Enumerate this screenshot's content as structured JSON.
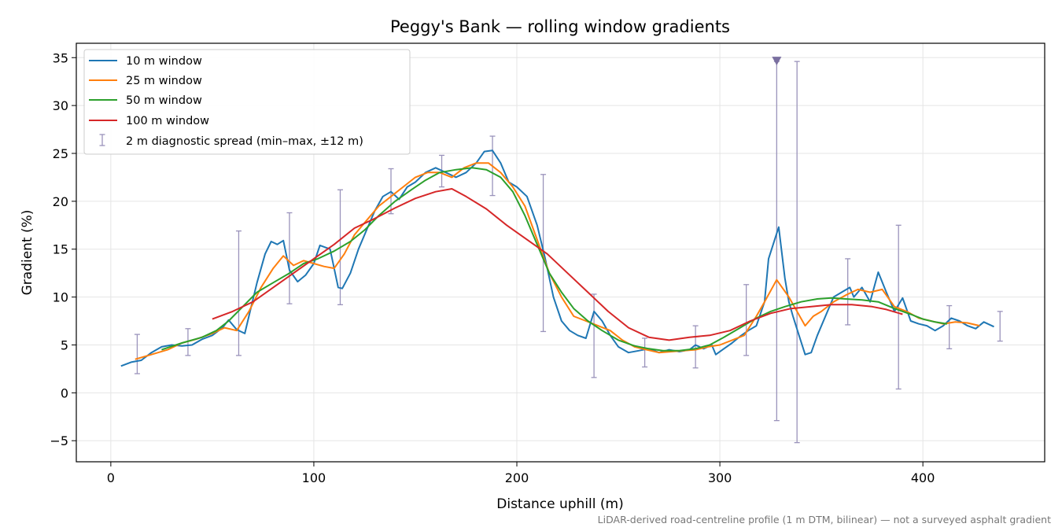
{
  "chart_data": {
    "type": "line",
    "title": "Peggy's Bank — rolling window gradients",
    "xlabel": "Distance uphill (m)",
    "ylabel": "Gradient (%)",
    "xlim": [
      -17,
      460
    ],
    "ylim": [
      -7.2,
      36.5
    ],
    "xticks": [
      0,
      100,
      200,
      300,
      400
    ],
    "yticks": [
      -5,
      0,
      5,
      10,
      15,
      20,
      25,
      30,
      35
    ],
    "grid": true,
    "legend_position": "top-left",
    "footnote": "LiDAR-derived road-centreline profile (1 m DTM, bilinear) — not a surveyed asphalt gradient",
    "series": [
      {
        "name": "10 m window",
        "color": "#1f77b4",
        "points": [
          [
            5,
            2.8
          ],
          [
            10,
            3.2
          ],
          [
            15,
            3.4
          ],
          [
            20,
            4.2
          ],
          [
            25,
            4.8
          ],
          [
            30,
            5.0
          ],
          [
            35,
            4.9
          ],
          [
            40,
            5.0
          ],
          [
            45,
            5.6
          ],
          [
            50,
            6.0
          ],
          [
            55,
            6.8
          ],
          [
            58,
            7.6
          ],
          [
            62,
            6.6
          ],
          [
            66,
            6.2
          ],
          [
            68,
            8.0
          ],
          [
            72,
            11.5
          ],
          [
            76,
            14.5
          ],
          [
            79,
            15.8
          ],
          [
            82,
            15.5
          ],
          [
            85,
            15.9
          ],
          [
            88,
            12.8
          ],
          [
            92,
            11.6
          ],
          [
            96,
            12.3
          ],
          [
            100,
            13.5
          ],
          [
            103,
            15.4
          ],
          [
            108,
            15.0
          ],
          [
            112,
            11.0
          ],
          [
            114,
            10.9
          ],
          [
            118,
            12.5
          ],
          [
            122,
            15.0
          ],
          [
            126,
            17.0
          ],
          [
            130,
            19.0
          ],
          [
            134,
            20.5
          ],
          [
            138,
            21.0
          ],
          [
            142,
            20.2
          ],
          [
            146,
            21.5
          ],
          [
            150,
            22.0
          ],
          [
            155,
            23.0
          ],
          [
            160,
            23.5
          ],
          [
            165,
            23.0
          ],
          [
            170,
            22.5
          ],
          [
            175,
            23.0
          ],
          [
            180,
            24.0
          ],
          [
            184,
            25.2
          ],
          [
            188,
            25.3
          ],
          [
            192,
            24.0
          ],
          [
            196,
            22.0
          ],
          [
            200,
            21.5
          ],
          [
            205,
            20.5
          ],
          [
            210,
            17.5
          ],
          [
            214,
            14.0
          ],
          [
            218,
            10.0
          ],
          [
            222,
            7.5
          ],
          [
            226,
            6.5
          ],
          [
            230,
            6.0
          ],
          [
            234,
            5.7
          ],
          [
            238,
            8.5
          ],
          [
            242,
            7.5
          ],
          [
            246,
            6.0
          ],
          [
            250,
            4.8
          ],
          [
            255,
            4.2
          ],
          [
            260,
            4.4
          ],
          [
            265,
            4.6
          ],
          [
            270,
            4.2
          ],
          [
            275,
            4.5
          ],
          [
            280,
            4.3
          ],
          [
            285,
            4.5
          ],
          [
            288,
            5.0
          ],
          [
            292,
            4.6
          ],
          [
            296,
            5.0
          ],
          [
            298,
            4.0
          ],
          [
            302,
            4.6
          ],
          [
            306,
            5.2
          ],
          [
            310,
            5.9
          ],
          [
            314,
            6.5
          ],
          [
            318,
            7.0
          ],
          [
            322,
            9.5
          ],
          [
            324,
            14.0
          ],
          [
            327,
            16.0
          ],
          [
            329,
            17.3
          ],
          [
            332,
            12.0
          ],
          [
            334,
            9.5
          ],
          [
            336,
            8.0
          ],
          [
            339,
            6.0
          ],
          [
            342,
            4.0
          ],
          [
            345,
            4.2
          ],
          [
            348,
            6.0
          ],
          [
            352,
            8.0
          ],
          [
            356,
            10.0
          ],
          [
            360,
            10.5
          ],
          [
            364,
            11.0
          ],
          [
            366,
            10.0
          ],
          [
            370,
            11.0
          ],
          [
            374,
            9.5
          ],
          [
            378,
            12.6
          ],
          [
            382,
            10.5
          ],
          [
            386,
            8.5
          ],
          [
            390,
            9.9
          ],
          [
            394,
            7.5
          ],
          [
            398,
            7.2
          ],
          [
            402,
            7.0
          ],
          [
            406,
            6.5
          ],
          [
            410,
            7.0
          ],
          [
            414,
            7.8
          ],
          [
            418,
            7.5
          ],
          [
            422,
            7.0
          ],
          [
            426,
            6.7
          ],
          [
            430,
            7.4
          ],
          [
            435,
            6.9
          ]
        ]
      },
      {
        "name": "25 m window",
        "color": "#ff7f0e",
        "points": [
          [
            12,
            3.5
          ],
          [
            20,
            4.0
          ],
          [
            28,
            4.5
          ],
          [
            35,
            5.2
          ],
          [
            42,
            5.6
          ],
          [
            50,
            6.2
          ],
          [
            56,
            6.8
          ],
          [
            62,
            6.5
          ],
          [
            68,
            8.5
          ],
          [
            74,
            11.0
          ],
          [
            80,
            13.0
          ],
          [
            85,
            14.3
          ],
          [
            90,
            13.3
          ],
          [
            95,
            13.8
          ],
          [
            100,
            13.5
          ],
          [
            105,
            13.2
          ],
          [
            110,
            13.0
          ],
          [
            115,
            14.5
          ],
          [
            120,
            16.5
          ],
          [
            126,
            18.0
          ],
          [
            132,
            19.5
          ],
          [
            138,
            20.5
          ],
          [
            144,
            21.5
          ],
          [
            150,
            22.5
          ],
          [
            156,
            23.0
          ],
          [
            162,
            23.0
          ],
          [
            168,
            22.5
          ],
          [
            174,
            23.5
          ],
          [
            180,
            24.0
          ],
          [
            186,
            24.0
          ],
          [
            192,
            23.0
          ],
          [
            198,
            21.5
          ],
          [
            204,
            19.5
          ],
          [
            210,
            16.0
          ],
          [
            216,
            12.5
          ],
          [
            222,
            10.0
          ],
          [
            228,
            8.0
          ],
          [
            234,
            7.5
          ],
          [
            240,
            7.0
          ],
          [
            246,
            6.5
          ],
          [
            252,
            5.5
          ],
          [
            258,
            4.8
          ],
          [
            264,
            4.5
          ],
          [
            270,
            4.2
          ],
          [
            276,
            4.3
          ],
          [
            282,
            4.4
          ],
          [
            288,
            4.5
          ],
          [
            294,
            4.8
          ],
          [
            300,
            5.0
          ],
          [
            306,
            5.5
          ],
          [
            312,
            6.0
          ],
          [
            318,
            8.0
          ],
          [
            322,
            9.5
          ],
          [
            328,
            11.8
          ],
          [
            334,
            10.0
          ],
          [
            338,
            8.5
          ],
          [
            342,
            7.0
          ],
          [
            346,
            8.0
          ],
          [
            350,
            8.5
          ],
          [
            356,
            9.5
          ],
          [
            362,
            10.2
          ],
          [
            368,
            10.8
          ],
          [
            374,
            10.5
          ],
          [
            380,
            10.8
          ],
          [
            386,
            9.0
          ],
          [
            392,
            8.5
          ],
          [
            398,
            7.8
          ],
          [
            404,
            7.5
          ],
          [
            410,
            7.2
          ],
          [
            416,
            7.4
          ],
          [
            422,
            7.3
          ],
          [
            428,
            7.0
          ]
        ]
      },
      {
        "name": "50 m window",
        "color": "#2ca02c",
        "points": [
          [
            25,
            4.5
          ],
          [
            35,
            5.2
          ],
          [
            45,
            5.8
          ],
          [
            52,
            6.5
          ],
          [
            58,
            7.5
          ],
          [
            65,
            9.0
          ],
          [
            72,
            10.5
          ],
          [
            80,
            11.5
          ],
          [
            88,
            12.5
          ],
          [
            95,
            13.5
          ],
          [
            102,
            14.0
          ],
          [
            110,
            14.8
          ],
          [
            118,
            15.8
          ],
          [
            125,
            17.0
          ],
          [
            132,
            18.5
          ],
          [
            140,
            20.0
          ],
          [
            148,
            21.2
          ],
          [
            155,
            22.2
          ],
          [
            162,
            23.0
          ],
          [
            170,
            23.3
          ],
          [
            178,
            23.5
          ],
          [
            185,
            23.3
          ],
          [
            192,
            22.5
          ],
          [
            198,
            21.0
          ],
          [
            204,
            18.5
          ],
          [
            210,
            15.5
          ],
          [
            216,
            12.5
          ],
          [
            222,
            10.5
          ],
          [
            228,
            8.8
          ],
          [
            235,
            7.5
          ],
          [
            242,
            6.5
          ],
          [
            250,
            5.5
          ],
          [
            258,
            4.9
          ],
          [
            265,
            4.6
          ],
          [
            272,
            4.4
          ],
          [
            280,
            4.4
          ],
          [
            288,
            4.6
          ],
          [
            295,
            5.0
          ],
          [
            302,
            5.8
          ],
          [
            310,
            6.8
          ],
          [
            318,
            7.8
          ],
          [
            325,
            8.5
          ],
          [
            332,
            9.0
          ],
          [
            340,
            9.5
          ],
          [
            348,
            9.8
          ],
          [
            355,
            9.9
          ],
          [
            362,
            9.8
          ],
          [
            370,
            9.7
          ],
          [
            378,
            9.5
          ],
          [
            386,
            8.8
          ],
          [
            394,
            8.2
          ],
          [
            400,
            7.7
          ],
          [
            406,
            7.4
          ],
          [
            412,
            7.2
          ]
        ]
      },
      {
        "name": "100 m window",
        "color": "#d62728",
        "points": [
          [
            50,
            7.7
          ],
          [
            60,
            8.5
          ],
          [
            70,
            9.5
          ],
          [
            80,
            11.0
          ],
          [
            90,
            12.5
          ],
          [
            100,
            14.0
          ],
          [
            110,
            15.5
          ],
          [
            120,
            17.2
          ],
          [
            130,
            18.2
          ],
          [
            140,
            19.3
          ],
          [
            150,
            20.3
          ],
          [
            160,
            21.0
          ],
          [
            168,
            21.3
          ],
          [
            175,
            20.5
          ],
          [
            185,
            19.2
          ],
          [
            195,
            17.5
          ],
          [
            205,
            16.0
          ],
          [
            215,
            14.5
          ],
          [
            225,
            12.5
          ],
          [
            235,
            10.5
          ],
          [
            245,
            8.5
          ],
          [
            255,
            6.8
          ],
          [
            265,
            5.8
          ],
          [
            275,
            5.5
          ],
          [
            285,
            5.8
          ],
          [
            295,
            6.0
          ],
          [
            305,
            6.5
          ],
          [
            315,
            7.5
          ],
          [
            325,
            8.3
          ],
          [
            335,
            8.8
          ],
          [
            345,
            9.0
          ],
          [
            355,
            9.2
          ],
          [
            365,
            9.2
          ],
          [
            375,
            9.0
          ],
          [
            382,
            8.7
          ],
          [
            390,
            8.2
          ]
        ]
      }
    ],
    "errorbars": {
      "name": "2 m diagnostic spread (min–max, ±12 m)",
      "color": "#9a93bb",
      "points": [
        {
          "x": 13,
          "low": 2.0,
          "high": 6.1
        },
        {
          "x": 38,
          "low": 3.9,
          "high": 6.7
        },
        {
          "x": 63,
          "low": 3.9,
          "high": 16.9
        },
        {
          "x": 88,
          "low": 9.3,
          "high": 18.8
        },
        {
          "x": 113,
          "low": 9.2,
          "high": 21.2
        },
        {
          "x": 138,
          "low": 18.7,
          "high": 23.4
        },
        {
          "x": 163,
          "low": 21.5,
          "high": 24.8
        },
        {
          "x": 188,
          "low": 20.6,
          "high": 26.8
        },
        {
          "x": 213,
          "low": 6.4,
          "high": 22.8
        },
        {
          "x": 238,
          "low": 1.6,
          "high": 10.3
        },
        {
          "x": 263,
          "low": 2.7,
          "high": 5.7
        },
        {
          "x": 288,
          "low": 2.6,
          "high": 7.0
        },
        {
          "x": 313,
          "low": 3.9,
          "high": 11.3
        },
        {
          "x": 328,
          "low": -2.9,
          "high": 34.6
        },
        {
          "x": 338,
          "low": -5.2,
          "high": 34.6
        },
        {
          "x": 363,
          "low": 7.1,
          "high": 14.0
        },
        {
          "x": 388,
          "low": 0.4,
          "high": 17.5
        },
        {
          "x": 413,
          "low": 4.6,
          "high": 9.1
        },
        {
          "x": 438,
          "low": 5.4,
          "high": 8.5
        }
      ]
    },
    "marker": {
      "x": 328,
      "y": 34.6,
      "color": "#7a6fa0"
    }
  }
}
